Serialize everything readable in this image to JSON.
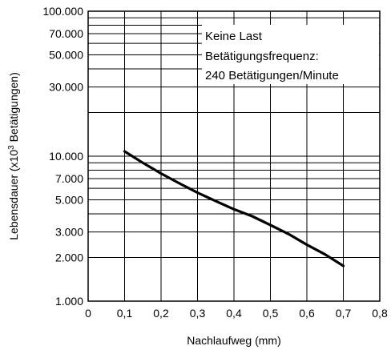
{
  "chart_data": {
    "type": "line",
    "title": "",
    "xlabel": "Nachlaufweg (mm)",
    "ylabel": "Lebensdauer (x10³ Betätigungen)",
    "ylabel_parts": {
      "before": "Lebensdauer (x10",
      "sup": "3",
      "after": " Betätigungen)"
    },
    "xlim": [
      0,
      0.8
    ],
    "ylim": [
      1000,
      100000
    ],
    "yscale": "log",
    "grid": true,
    "x_ticks": [
      0,
      0.1,
      0.2,
      0.3,
      0.4,
      0.5,
      0.6,
      0.7,
      0.8
    ],
    "x_tick_labels": [
      "0",
      "0,1",
      "0,2",
      "0,3",
      "0,4",
      "0,5",
      "0,6",
      "0,7",
      "0,8"
    ],
    "y_ticks": [
      1000,
      2000,
      3000,
      5000,
      7000,
      10000,
      30000,
      50000,
      70000,
      100000
    ],
    "y_tick_labels": [
      "1.000",
      "2.000",
      "3.000",
      "5.000",
      "7.000",
      "10.000",
      "30.000",
      "50.000",
      "70.000",
      "100.000"
    ],
    "y_minor_grid": [
      4000,
      6000,
      8000,
      9000,
      20000,
      40000,
      60000,
      80000,
      90000
    ],
    "series": [
      {
        "name": "",
        "x": [
          0.1,
          0.15,
          0.2,
          0.25,
          0.3,
          0.35,
          0.4,
          0.45,
          0.5,
          0.55,
          0.6,
          0.65,
          0.7
        ],
        "y": [
          10800,
          9000,
          7600,
          6500,
          5600,
          4900,
          4300,
          3850,
          3350,
          2900,
          2450,
          2100,
          1750
        ]
      }
    ],
    "annotations": [
      "Keine Last",
      "Betätigungsfrequenz:",
      "240 Betätigungen/Minute"
    ],
    "annotation_placement": "top-right"
  }
}
